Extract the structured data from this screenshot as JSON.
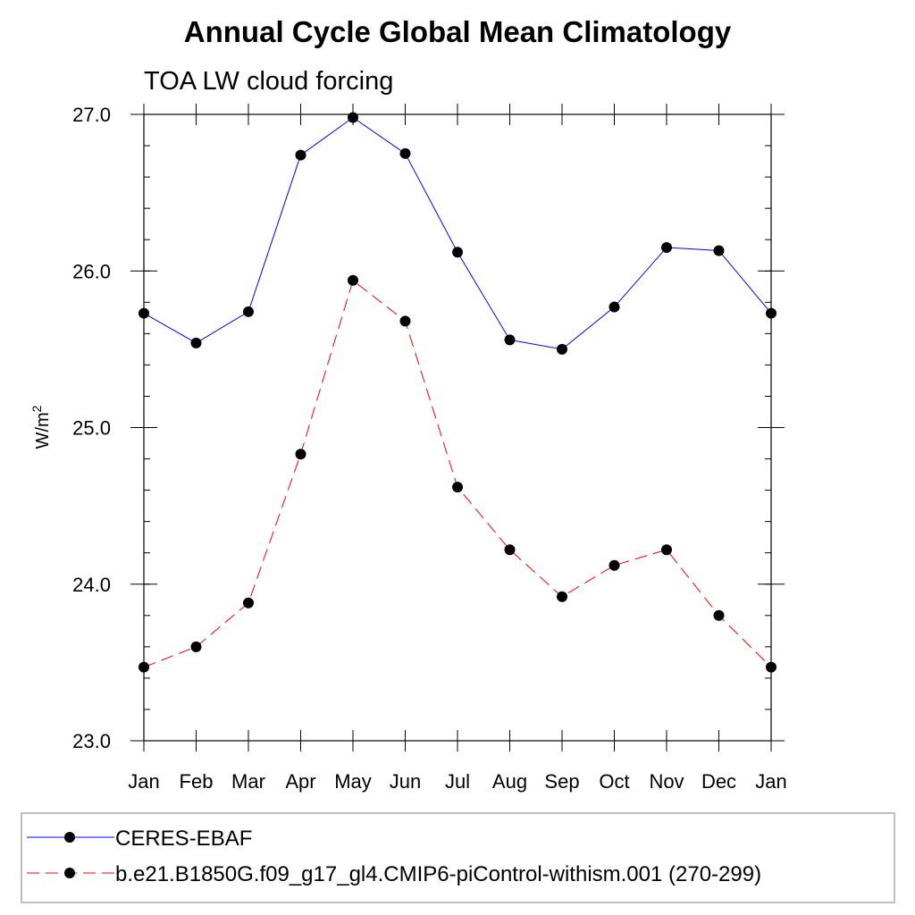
{
  "chart_data": {
    "type": "line",
    "title": "Annual Cycle Global Mean Climatology",
    "subtitle": "TOA LW cloud forcing",
    "ylabel": "W/m",
    "ylabel_superscript": "2",
    "xlabel": "",
    "categories": [
      "Jan",
      "Feb",
      "Mar",
      "Apr",
      "May",
      "Jun",
      "Jul",
      "Aug",
      "Sep",
      "Oct",
      "Nov",
      "Dec",
      "Jan"
    ],
    "ylim": [
      23.0,
      27.0
    ],
    "yticks": [
      "27.0",
      "26.0",
      "25.0",
      "24.0",
      "23.0"
    ],
    "yticks_values": [
      27.0,
      26.0,
      25.0,
      24.0,
      23.0
    ],
    "y_minor_step": 0.2,
    "grid": false,
    "legend_position": "bottom",
    "series": [
      {
        "name": "CERES-EBAF",
        "color": "#0000ff",
        "dash": "solid",
        "marker": "filled-circle",
        "values": [
          25.73,
          25.54,
          25.74,
          26.74,
          26.98,
          26.75,
          26.12,
          25.56,
          25.5,
          25.77,
          26.15,
          26.13,
          25.73
        ]
      },
      {
        "name": "b.e21.B1850G.f09_g17_gl4.CMIP6-piControl-withism.001 (270-299)",
        "color": "#ff0000",
        "dash": "dashed",
        "marker": "filled-circle",
        "values": [
          23.47,
          23.6,
          23.88,
          24.83,
          25.94,
          25.68,
          24.62,
          24.22,
          23.92,
          24.12,
          24.22,
          23.8,
          23.47
        ]
      }
    ]
  }
}
